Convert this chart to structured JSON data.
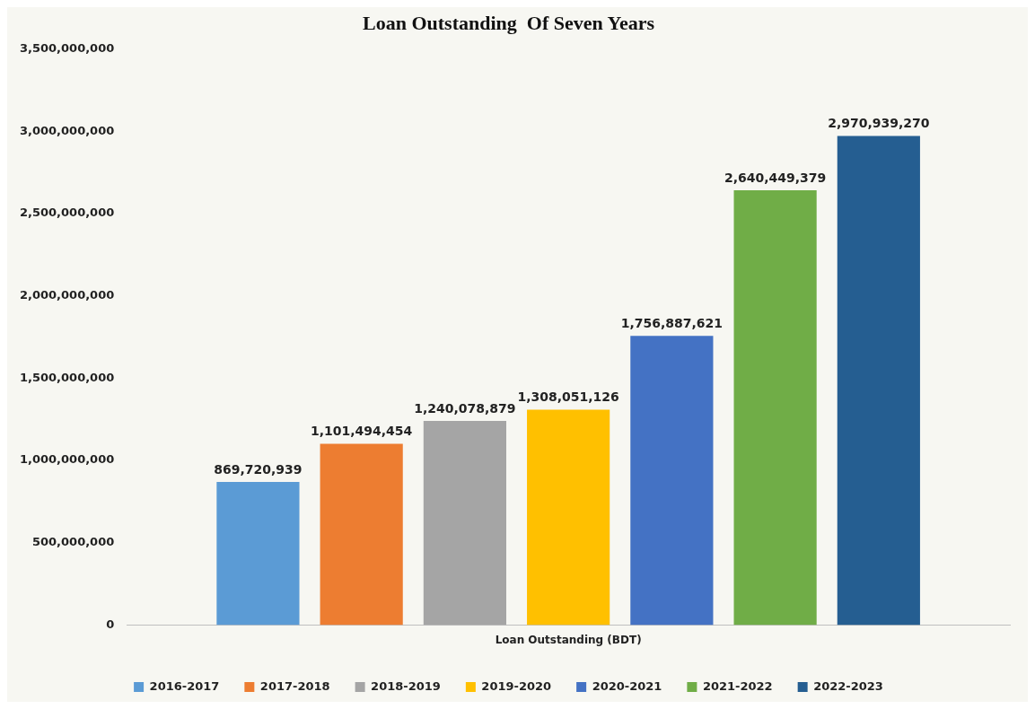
{
  "chart_data": {
    "type": "bar",
    "title": "Loan Outstanding  Of Seven Years",
    "categories": [
      "Loan Outstanding (BDT)"
    ],
    "series": [
      {
        "name": "2016-2017",
        "color": "#5b9bd5",
        "values": [
          869720939
        ],
        "value_labels": [
          "869,720,939"
        ]
      },
      {
        "name": "2017-2018",
        "color": "#ed7d31",
        "values": [
          1101494454
        ],
        "value_labels": [
          "1,101,494,454"
        ]
      },
      {
        "name": "2018-2019",
        "color": "#a5a5a5",
        "values": [
          1240078879
        ],
        "value_labels": [
          "1,240,078,879"
        ]
      },
      {
        "name": "2019-2020",
        "color": "#ffc000",
        "values": [
          1308051126
        ],
        "value_labels": [
          "1,308,051,126"
        ]
      },
      {
        "name": "2020-2021",
        "color": "#4472c4",
        "values": [
          1756887621
        ],
        "value_labels": [
          "1,756,887,621"
        ]
      },
      {
        "name": "2021-2022",
        "color": "#70ad47",
        "values": [
          2640449379
        ],
        "value_labels": [
          "2,640,449,379"
        ]
      },
      {
        "name": "2022-2023",
        "color": "#255e91",
        "values": [
          2970939270
        ],
        "value_labels": [
          "2,970,939,270"
        ]
      }
    ],
    "ylim": [
      0,
      3500000000
    ],
    "yticks": [
      {
        "value": 0,
        "label": "0"
      },
      {
        "value": 500000000,
        "label": "500,000,000"
      },
      {
        "value": 1000000000,
        "label": "1,000,000,000"
      },
      {
        "value": 1500000000,
        "label": "1,500,000,000"
      },
      {
        "value": 2000000000,
        "label": "2,000,000,000"
      },
      {
        "value": 2500000000,
        "label": "2,500,000,000"
      },
      {
        "value": 3000000000,
        "label": "3,000,000,000"
      },
      {
        "value": 3500000000,
        "label": "3,500,000,000"
      }
    ],
    "grid": false,
    "legend": "bottom"
  }
}
